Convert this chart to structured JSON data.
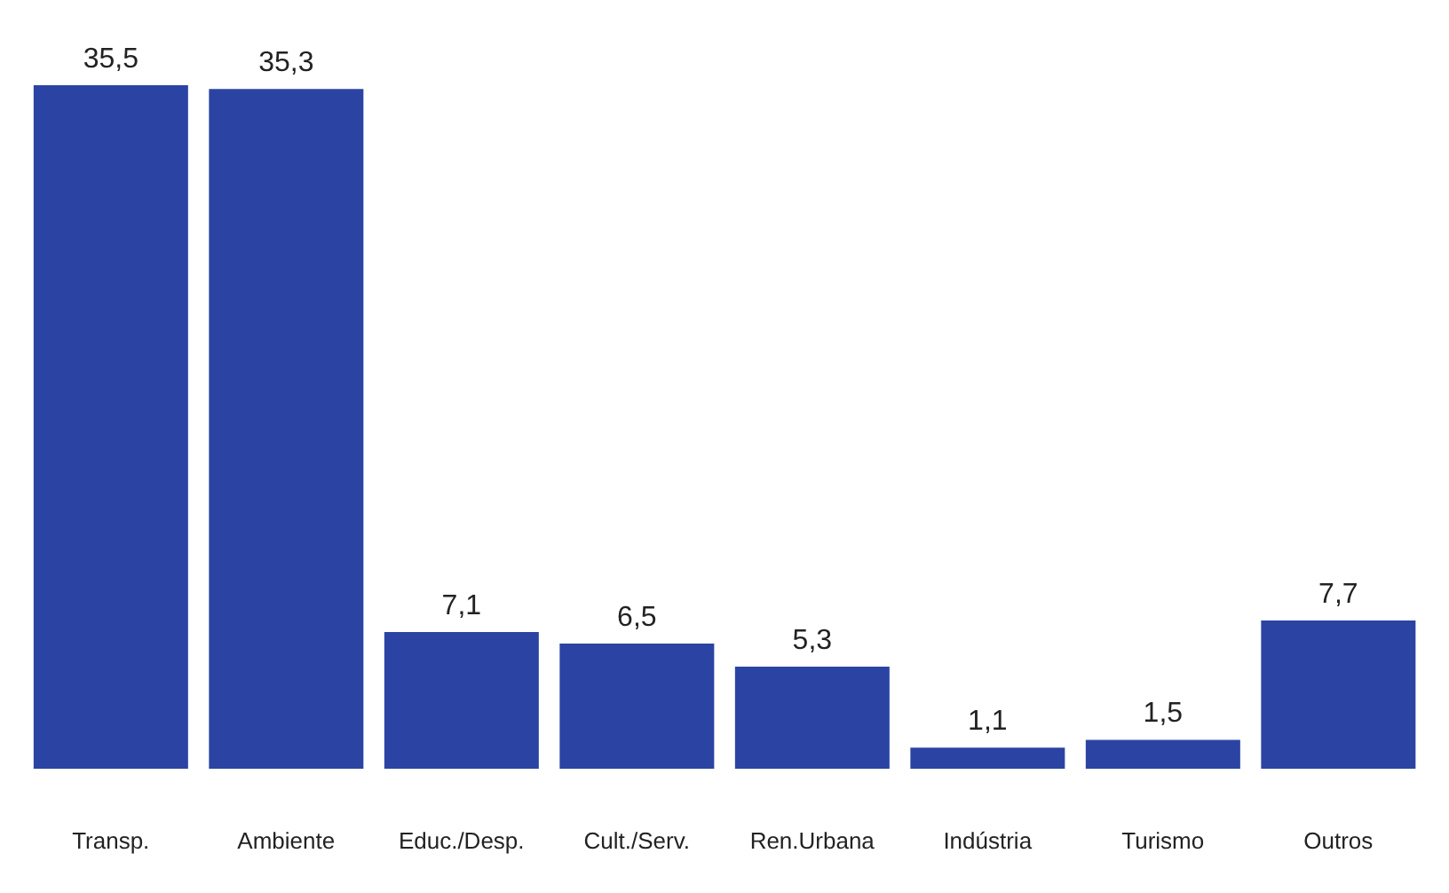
{
  "chart_data": {
    "type": "bar",
    "categories": [
      "Transp.",
      "Ambiente",
      "Educ./Desp.",
      "Cult./Serv.",
      "Ren.Urbana",
      "Indústria",
      "Turismo",
      "Outros"
    ],
    "values": [
      35.5,
      35.3,
      7.1,
      6.5,
      5.3,
      1.1,
      1.5,
      7.7
    ],
    "value_labels": [
      "35,5",
      "35,3",
      "7,1",
      "6,5",
      "5,3",
      "1,1",
      "1,5",
      "7,7"
    ],
    "color": "#2b44a3"
  }
}
